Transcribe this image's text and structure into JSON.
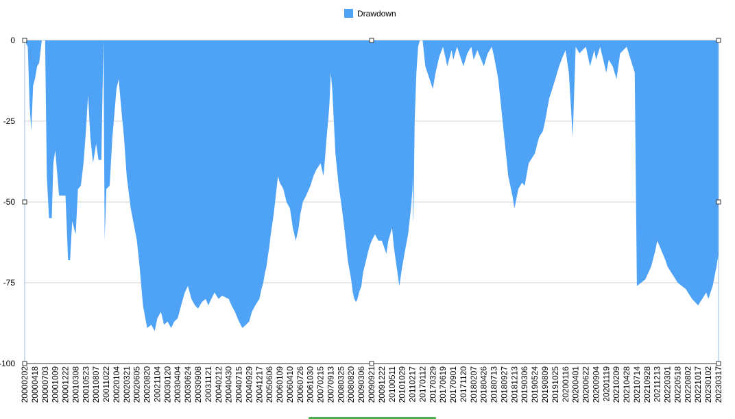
{
  "chart_data": {
    "type": "area",
    "xlabel": "",
    "ylabel": "",
    "ylim": [
      -100,
      0
    ],
    "yticks": [
      0,
      -25,
      -50,
      -75,
      -100
    ],
    "grid": true,
    "legend": "top-center",
    "series": [
      {
        "name": "Drawdown",
        "color": "#4fa3f7",
        "points": [
          [
            "2000-02-02",
            0
          ],
          [
            "2000-02-25",
            -2
          ],
          [
            "2000-03-10",
            -20
          ],
          [
            "2000-03-22",
            -28
          ],
          [
            "2000-04-05",
            -14
          ],
          [
            "2000-04-18",
            -12
          ],
          [
            "2000-05-05",
            -8
          ],
          [
            "2000-05-20",
            -7
          ],
          [
            "2000-06-08",
            0
          ],
          [
            "2000-06-22",
            0
          ],
          [
            "2000-07-03",
            0
          ],
          [
            "2000-07-20",
            -42
          ],
          [
            "2000-08-10",
            -55
          ],
          [
            "2000-09-05",
            -55
          ],
          [
            "2000-09-20",
            -38
          ],
          [
            "2000-10-09",
            -34
          ],
          [
            "2000-11-05",
            -48
          ],
          [
            "2000-12-01",
            -48
          ],
          [
            "2000-12-22",
            -48
          ],
          [
            "2001-01-10",
            -68
          ],
          [
            "2001-01-25",
            -68
          ],
          [
            "2001-02-10",
            -56
          ],
          [
            "2001-03-08",
            -60
          ],
          [
            "2001-03-25",
            -46
          ],
          [
            "2001-04-15",
            -45
          ],
          [
            "2001-05-05",
            -38
          ],
          [
            "2001-05-23",
            -28
          ],
          [
            "2001-06-08",
            -17
          ],
          [
            "2001-06-25",
            -30
          ],
          [
            "2001-07-15",
            -38
          ],
          [
            "2001-08-07",
            -32
          ],
          [
            "2001-08-25",
            -37
          ],
          [
            "2001-09-15",
            -37
          ],
          [
            "2001-10-01",
            0
          ],
          [
            "2001-10-10",
            -62
          ],
          [
            "2001-10-22",
            -46
          ],
          [
            "2001-11-15",
            -45
          ],
          [
            "2001-12-05",
            -30
          ],
          [
            "2001-12-25",
            -20
          ],
          [
            "2002-01-04",
            -15
          ],
          [
            "2002-01-20",
            -12
          ],
          [
            "2002-02-10",
            -22
          ],
          [
            "2002-03-01",
            -30
          ],
          [
            "2002-03-21",
            -42
          ],
          [
            "2002-04-20",
            -52
          ],
          [
            "2002-06-05",
            -62
          ],
          [
            "2002-06-25",
            -70
          ],
          [
            "2002-07-20",
            -82
          ],
          [
            "2002-08-20",
            -89
          ],
          [
            "2002-09-20",
            -88
          ],
          [
            "2002-10-15",
            -90
          ],
          [
            "2002-11-04",
            -86
          ],
          [
            "2002-12-01",
            -84
          ],
          [
            "2002-12-25",
            -88
          ],
          [
            "2003-01-20",
            -87
          ],
          [
            "2003-02-15",
            -89
          ],
          [
            "2003-03-10",
            -87
          ],
          [
            "2003-04-04",
            -86
          ],
          [
            "2003-05-01",
            -82
          ],
          [
            "2003-05-30",
            -78
          ],
          [
            "2003-06-24",
            -76
          ],
          [
            "2003-07-20",
            -80
          ],
          [
            "2003-08-15",
            -82
          ],
          [
            "2003-09-08",
            -83
          ],
          [
            "2003-10-05",
            -81
          ],
          [
            "2003-11-01",
            -80
          ],
          [
            "2003-11-21",
            -82
          ],
          [
            "2003-12-15",
            -80
          ],
          [
            "2004-01-10",
            -78
          ],
          [
            "2004-02-12",
            -80
          ],
          [
            "2004-03-10",
            -79
          ],
          [
            "2004-04-30",
            -80
          ],
          [
            "2004-05-20",
            -82
          ],
          [
            "2004-06-15",
            -84
          ],
          [
            "2004-07-15",
            -87
          ],
          [
            "2004-08-10",
            -89
          ],
          [
            "2004-09-05",
            -88
          ],
          [
            "2004-09-29",
            -87
          ],
          [
            "2004-10-20",
            -84
          ],
          [
            "2004-11-15",
            -82
          ],
          [
            "2004-12-17",
            -80
          ],
          [
            "2005-01-20",
            -77
          ],
          [
            "2005-02-20",
            -75
          ],
          [
            "2005-03-20",
            -72
          ],
          [
            "2005-04-15",
            -70
          ],
          [
            "2005-05-06",
            -67
          ],
          [
            "2005-06-01",
            -64
          ],
          [
            "2005-07-01",
            -60
          ],
          [
            "2005-08-01",
            -57
          ],
          [
            "2005-09-01",
            -54
          ],
          [
            "2005-10-01",
            -50
          ],
          [
            "2005-11-01",
            -46
          ],
          [
            "2005-12-01",
            -42
          ],
          [
            "2006-01-09",
            -44
          ],
          [
            "2006-02-10",
            -46
          ],
          [
            "2006-03-10",
            -50
          ],
          [
            "2006-04-10",
            -52
          ],
          [
            "2006-05-10",
            -58
          ],
          [
            "2006-06-10",
            -62
          ],
          [
            "2006-07-10",
            -58
          ],
          [
            "2006-07-26",
            -54
          ],
          [
            "2006-08-20",
            -50
          ],
          [
            "2006-09-20",
            -48
          ],
          [
            "2006-10-30",
            -45
          ],
          [
            "2006-12-01",
            -42
          ],
          [
            "2007-01-01",
            -40
          ],
          [
            "2007-02-15",
            -38
          ],
          [
            "2007-03-15",
            -40
          ],
          [
            "2007-04-15",
            -42
          ],
          [
            "2007-05-20",
            -36
          ],
          [
            "2007-06-20",
            -30
          ],
          [
            "2007-07-20",
            -25
          ],
          [
            "2007-08-15",
            -20
          ],
          [
            "2007-09-13",
            -10
          ],
          [
            "2007-10-10",
            -15
          ],
          [
            "2007-11-10",
            -25
          ],
          [
            "2007-12-10",
            -35
          ],
          [
            "2008-01-10",
            -40
          ],
          [
            "2008-02-10",
            -45
          ],
          [
            "2008-03-25",
            -50
          ],
          [
            "2008-05-01",
            -56
          ],
          [
            "2008-06-01",
            -62
          ],
          [
            "2008-07-01",
            -68
          ],
          [
            "2008-08-20",
            -74
          ],
          [
            "2008-09-20",
            -78
          ],
          [
            "2008-10-20",
            -80
          ],
          [
            "2008-11-20",
            -81
          ],
          [
            "2008-12-20",
            -80
          ],
          [
            "2009-01-20",
            -78
          ],
          [
            "2009-03-06",
            -76
          ],
          [
            "2009-04-06",
            -72
          ],
          [
            "2009-05-06",
            -70
          ],
          [
            "2009-06-06",
            -68
          ],
          [
            "2009-07-06",
            -66
          ],
          [
            "2009-08-06",
            -64
          ],
          [
            "2009-09-21",
            -62
          ],
          [
            "2009-10-21",
            -60
          ],
          [
            "2009-11-21",
            -62
          ],
          [
            "2009-12-22",
            -62
          ],
          [
            "2010-01-22",
            -64
          ],
          [
            "2010-02-22",
            -66
          ],
          [
            "2010-03-22",
            -62
          ],
          [
            "2010-05-11",
            -58
          ],
          [
            "2010-06-11",
            -64
          ],
          [
            "2010-07-11",
            -68
          ],
          [
            "2010-08-11",
            -72
          ],
          [
            "2010-09-11",
            -76
          ],
          [
            "2010-10-29",
            -70
          ],
          [
            "2010-11-29",
            -65
          ],
          [
            "2011-01-01",
            -60
          ],
          [
            "2011-02-01",
            -52
          ],
          [
            "2011-03-01",
            -46
          ],
          [
            "2011-04-01",
            -42
          ],
          [
            "2011-05-01",
            -46
          ],
          [
            "2011-06-01",
            -55
          ],
          [
            "2011-07-01",
            -56
          ],
          [
            "2011-08-01",
            -54
          ],
          [
            "2011-10-01",
            -50
          ],
          [
            "2011-12-17",
            -45
          ],
          [
            "2012-06-01",
            -25
          ],
          [
            "2013-06-01",
            -10
          ],
          [
            "2014-06-01",
            -2
          ],
          [
            "2015-06-01",
            0
          ],
          [
            "2016-06-01",
            0
          ],
          [
            "2017-01-12",
            0
          ],
          [
            "2017-02-01",
            -8
          ],
          [
            "2017-03-29",
            -15
          ],
          [
            "2017-04-20",
            -10
          ],
          [
            "2017-05-20",
            -5
          ],
          [
            "2017-06-19",
            -2
          ],
          [
            "2017-07-20",
            -8
          ],
          [
            "2017-08-20",
            -3
          ],
          [
            "2017-09-01",
            -6
          ],
          [
            "2017-10-01",
            -2
          ],
          [
            "2017-11-20",
            -8
          ],
          [
            "2017-12-20",
            -4
          ],
          [
            "2018-01-20",
            -2
          ],
          [
            "2018-02-07",
            -6
          ],
          [
            "2018-03-07",
            -3
          ],
          [
            "2018-04-26",
            -8
          ],
          [
            "2018-05-26",
            -4
          ],
          [
            "2018-06-26",
            -2
          ],
          [
            "2018-07-13",
            -5
          ],
          [
            "2018-08-13",
            -12
          ],
          [
            "2018-09-27",
            -30
          ],
          [
            "2018-10-27",
            -42
          ],
          [
            "2018-11-27",
            -48
          ],
          [
            "2018-12-13",
            -52
          ],
          [
            "2019-01-13",
            -46
          ],
          [
            "2019-02-13",
            -44
          ],
          [
            "2019-03-06",
            -45
          ],
          [
            "2019-04-06",
            -38
          ],
          [
            "2019-05-24",
            -35
          ],
          [
            "2019-06-24",
            -30
          ],
          [
            "2019-07-24",
            -28
          ],
          [
            "2019-08-09",
            -25
          ],
          [
            "2019-09-09",
            -18
          ],
          [
            "2019-10-25",
            -12
          ],
          [
            "2019-11-25",
            -8
          ],
          [
            "2019-12-25",
            -5
          ],
          [
            "2020-01-16",
            -3
          ],
          [
            "2020-02-10",
            -10
          ],
          [
            "2020-03-10",
            -30
          ],
          [
            "2020-04-01",
            -2
          ],
          [
            "2020-05-01",
            -4
          ],
          [
            "2020-06-22",
            -2
          ],
          [
            "2020-07-22",
            -8
          ],
          [
            "2020-08-22",
            -3
          ],
          [
            "2020-09-04",
            -6
          ],
          [
            "2020-10-04",
            -2
          ],
          [
            "2020-11-19",
            -10
          ],
          [
            "2020-12-09",
            -6
          ],
          [
            "2021-01-09",
            -8
          ],
          [
            "2021-02-09",
            -12
          ],
          [
            "2021-03-09",
            -4
          ],
          [
            "2021-04-28",
            -2
          ],
          [
            "2021-05-28",
            -6
          ],
          [
            "2021-06-28",
            -10
          ],
          [
            "2021-07-14",
            -76
          ],
          [
            "2021-08-14",
            -75
          ],
          [
            "2021-09-14",
            -74
          ],
          [
            "2021-10-28",
            -70
          ],
          [
            "2021-11-28",
            -65
          ],
          [
            "2021-12-13",
            -62
          ],
          [
            "2022-01-13",
            -65
          ],
          [
            "2022-02-13",
            -68
          ],
          [
            "2022-03-01",
            -70
          ],
          [
            "2022-04-01",
            -72
          ],
          [
            "2022-05-18",
            -75
          ],
          [
            "2022-06-18",
            -76
          ],
          [
            "2022-07-18",
            -77
          ],
          [
            "2022-08-02",
            -78
          ],
          [
            "2022-09-02",
            -80
          ],
          [
            "2022-10-17",
            -82
          ],
          [
            "2022-11-17",
            -80
          ],
          [
            "2022-12-17",
            -78
          ],
          [
            "2023-01-02",
            -80
          ],
          [
            "2023-02-02",
            -76
          ],
          [
            "2023-03-02",
            -70
          ],
          [
            "2023-03-17",
            -66
          ]
        ]
      }
    ],
    "x_tick_labels": [
      "20000202",
      "20000418",
      "20000703",
      "20001009",
      "20001222",
      "20010308",
      "20010523",
      "20010807",
      "20011022",
      "20020104",
      "20020321",
      "20020605",
      "20020820",
      "20021104",
      "20030120",
      "20030404",
      "20030624",
      "20030908",
      "20031121",
      "20040212",
      "20040430",
      "20040715",
      "20040929",
      "20041217",
      "20050606",
      "20060109",
      "20060410",
      "20060726",
      "20061030",
      "20070215",
      "20070913",
      "20080325",
      "20080820",
      "20090306",
      "20090921",
      "20091222",
      "20100511",
      "20101029",
      "20110217",
      "20170112",
      "20170329",
      "20170619",
      "20170901",
      "20171120",
      "20180207",
      "20180426",
      "20180713",
      "20180927",
      "20181213",
      "20190306",
      "20190524",
      "20190809",
      "20191025",
      "20200116",
      "20200401",
      "20200622",
      "20200904",
      "20201119",
      "20210209",
      "20210428",
      "20210714",
      "20210928",
      "20211213",
      "20220301",
      "20220518",
      "20220802",
      "20221017",
      "20230102",
      "20230317"
    ],
    "y_tick_labels": [
      "0",
      "-25",
      "-50",
      "-75",
      "-100"
    ]
  }
}
